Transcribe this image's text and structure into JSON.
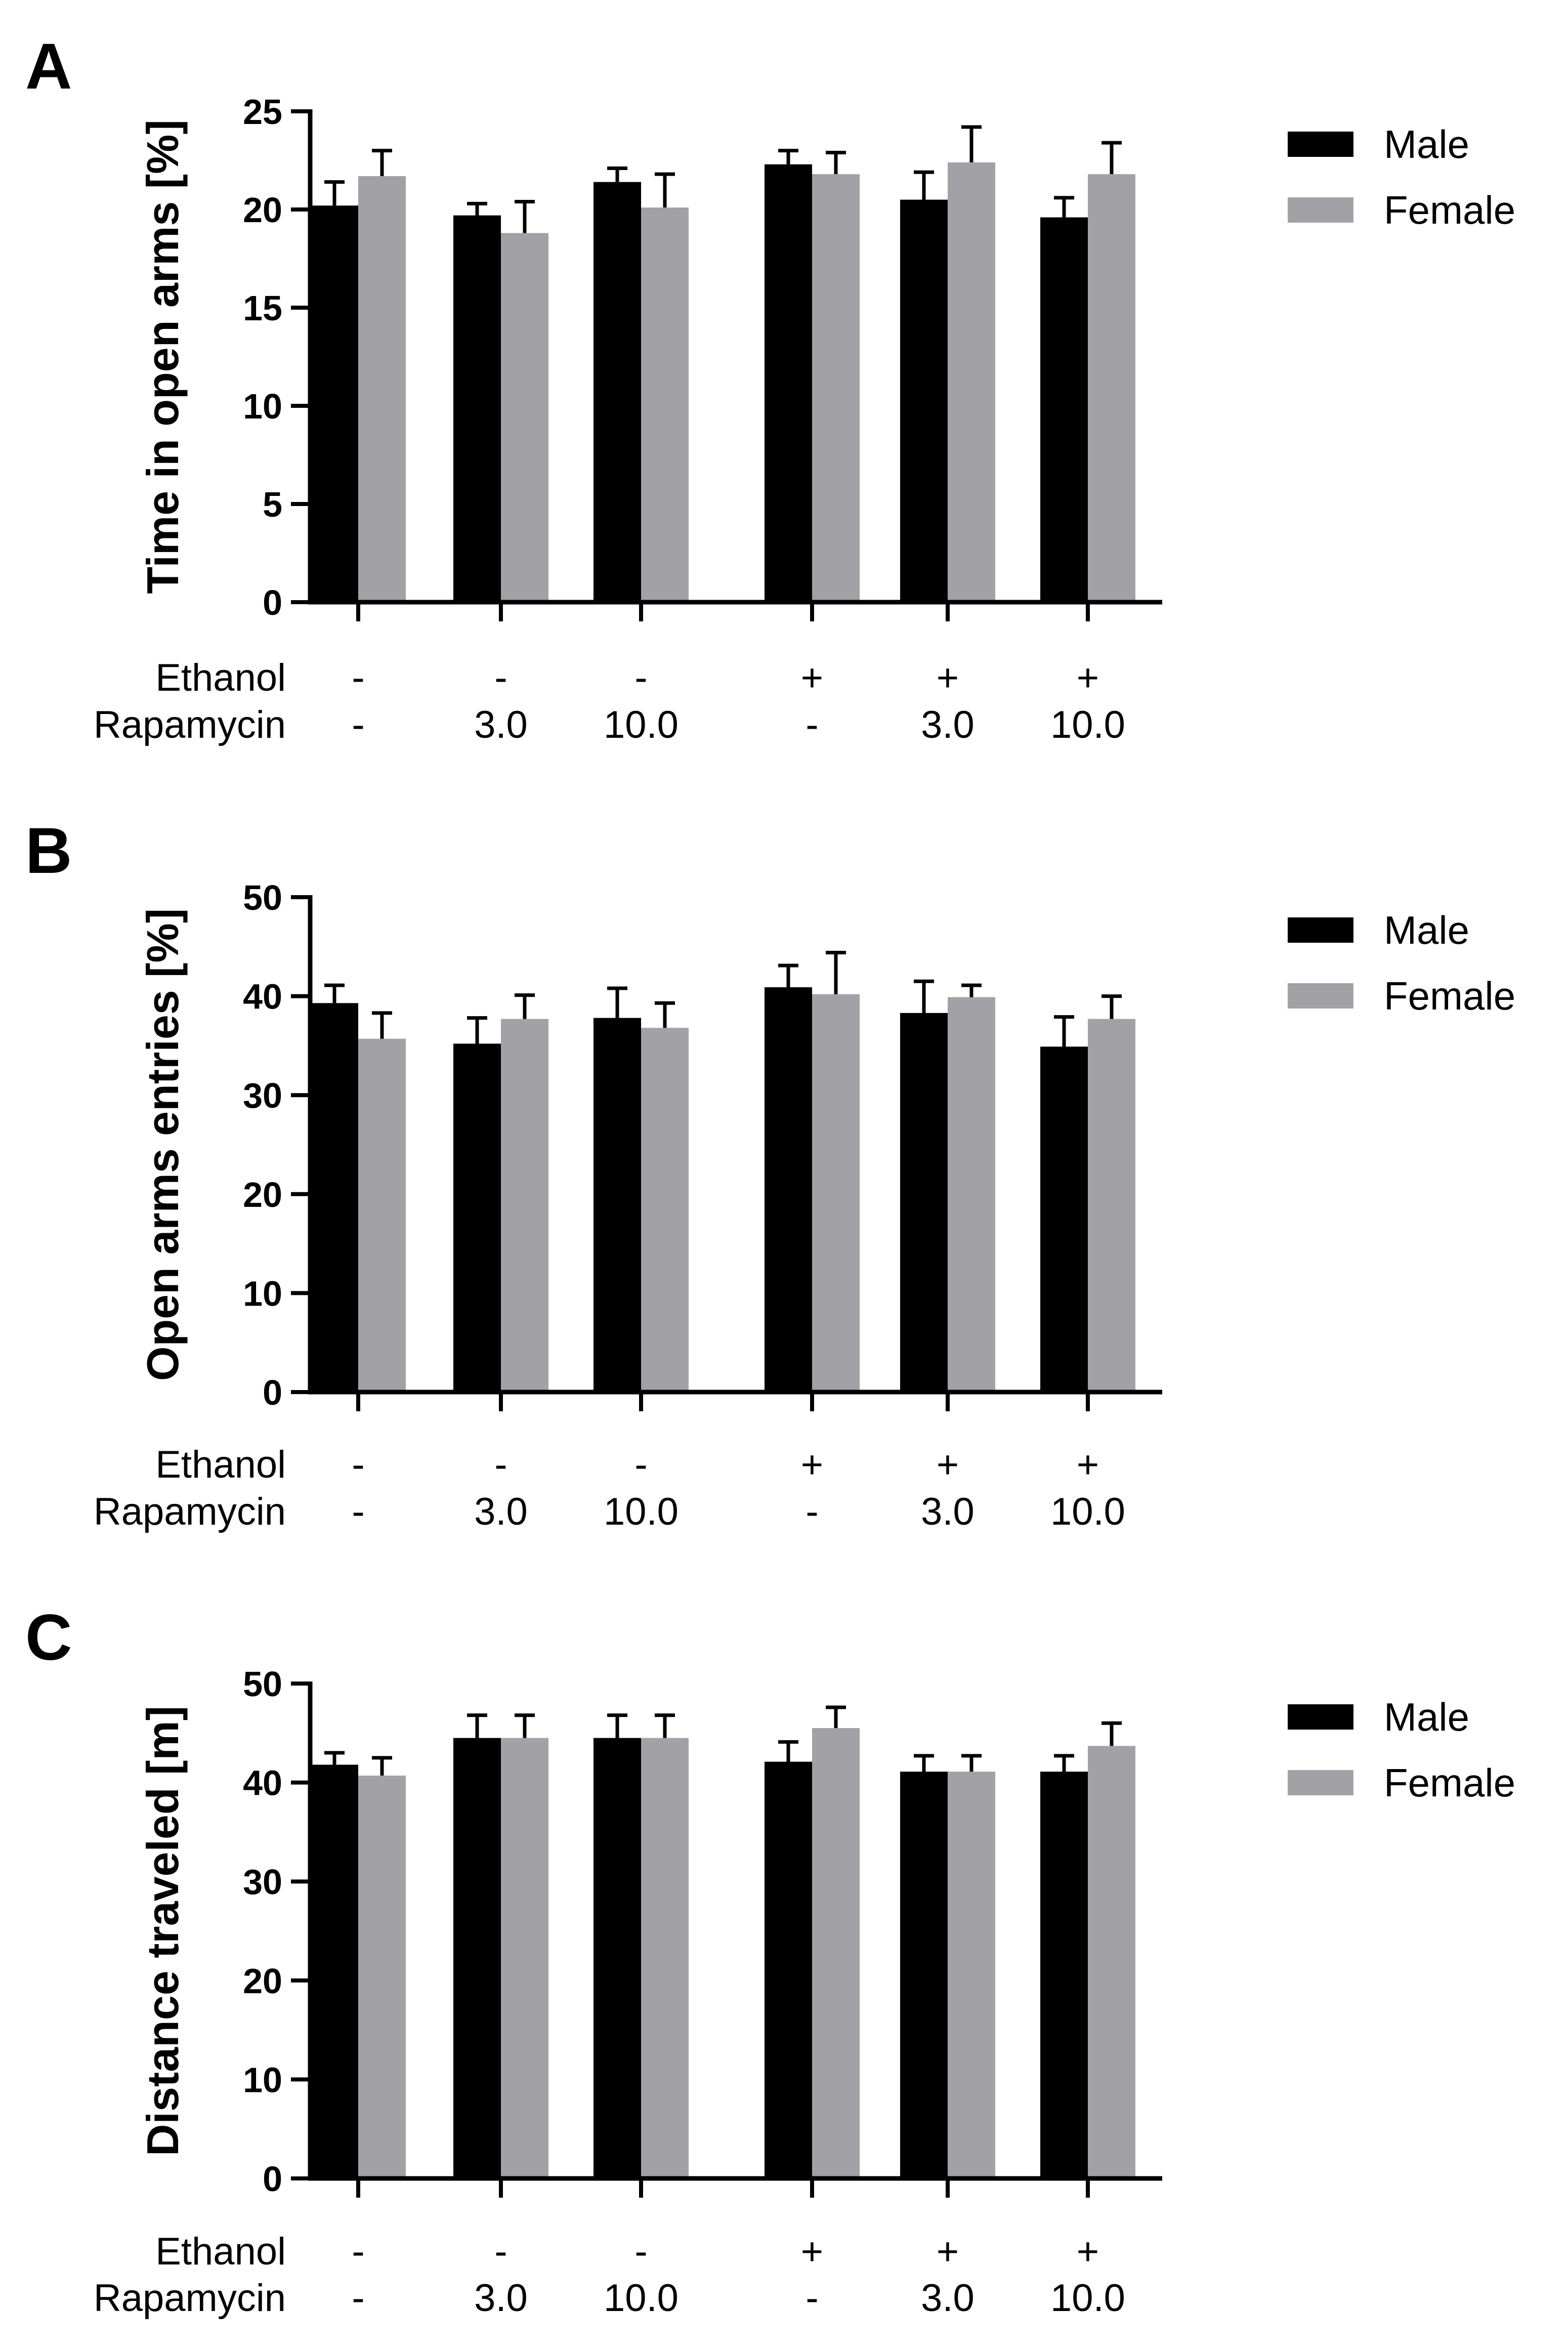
{
  "chart_data": [
    {
      "panel": "A",
      "type": "bar",
      "ylabel": "Time in open arms [%]",
      "ylim": [
        0,
        25
      ],
      "yticks": [
        0,
        5,
        10,
        15,
        20,
        25
      ],
      "condition_rows": [
        {
          "label": "Ethanol",
          "values": [
            "-",
            "-",
            "-",
            "+",
            "+",
            "+"
          ]
        },
        {
          "label": "Rapamycin",
          "values": [
            "-",
            "3.0",
            "10.0",
            "-",
            "3.0",
            "10.0"
          ]
        }
      ],
      "series": [
        {
          "name": "Male",
          "color": "#000000",
          "values": [
            20.2,
            19.7,
            21.4,
            22.3,
            20.5,
            19.6
          ],
          "errors": [
            1.2,
            0.6,
            0.7,
            0.7,
            1.4,
            1.0
          ]
        },
        {
          "name": "Female",
          "color": "#a2a2a6",
          "values": [
            21.7,
            18.8,
            20.1,
            21.8,
            22.4,
            21.8
          ],
          "errors": [
            1.3,
            1.6,
            1.7,
            1.1,
            1.8,
            1.6
          ]
        }
      ]
    },
    {
      "panel": "B",
      "type": "bar",
      "ylabel": "Open arms entries [%]",
      "ylim": [
        0,
        50
      ],
      "yticks": [
        0,
        10,
        20,
        30,
        40,
        50
      ],
      "condition_rows": [
        {
          "label": "Ethanol",
          "values": [
            "-",
            "-",
            "-",
            "+",
            "+",
            "+"
          ]
        },
        {
          "label": "Rapamycin",
          "values": [
            "-",
            "3.0",
            "10.0",
            "-",
            "3.0",
            "10.0"
          ]
        }
      ],
      "series": [
        {
          "name": "Male",
          "color": "#000000",
          "values": [
            39.3,
            35.2,
            37.8,
            40.9,
            38.3,
            34.9
          ],
          "errors": [
            1.8,
            2.6,
            3.0,
            2.2,
            3.2,
            3.0
          ]
        },
        {
          "name": "Female",
          "color": "#a2a2a6",
          "values": [
            35.7,
            37.7,
            36.8,
            40.2,
            39.9,
            37.7
          ],
          "errors": [
            2.6,
            2.4,
            2.5,
            4.2,
            1.2,
            2.3
          ]
        }
      ]
    },
    {
      "panel": "C",
      "type": "bar",
      "ylabel": "Distance traveled [m]",
      "ylim": [
        0,
        50
      ],
      "yticks": [
        0,
        10,
        20,
        30,
        40,
        50
      ],
      "condition_rows": [
        {
          "label": "Ethanol",
          "values": [
            "-",
            "-",
            "-",
            "+",
            "+",
            "+"
          ]
        },
        {
          "label": "Rapamycin",
          "values": [
            "-",
            "3.0",
            "10.0",
            "-",
            "3.0",
            "10.0"
          ]
        }
      ],
      "series": [
        {
          "name": "Male",
          "color": "#000000",
          "values": [
            41.8,
            44.5,
            44.5,
            42.1,
            41.1,
            41.1
          ],
          "errors": [
            1.2,
            2.3,
            2.3,
            2.0,
            1.6,
            1.6
          ]
        },
        {
          "name": "Female",
          "color": "#a2a2a6",
          "values": [
            40.7,
            44.5,
            44.5,
            45.5,
            41.1,
            43.7
          ],
          "errors": [
            1.8,
            2.3,
            2.3,
            2.1,
            1.6,
            2.3
          ]
        }
      ]
    }
  ]
}
